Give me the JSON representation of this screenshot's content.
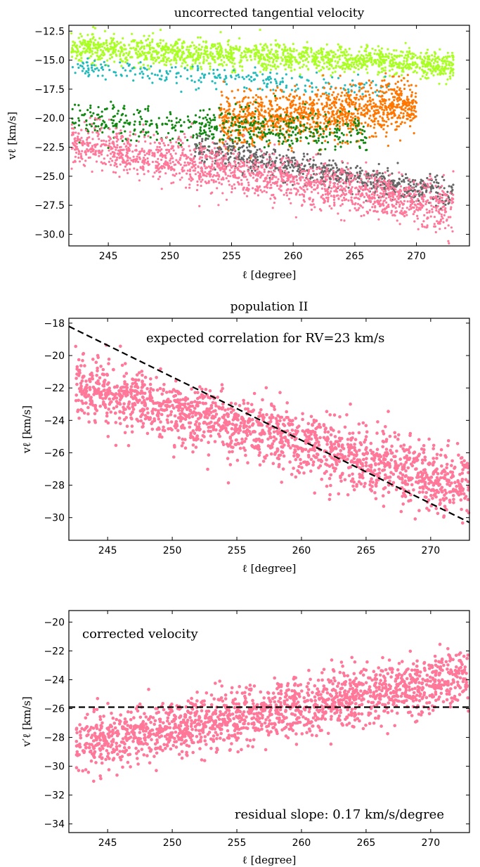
{
  "chart_data": [
    {
      "type": "scatter",
      "title": "uncorrected tangential velocity",
      "xlabel": "ℓ [degree]",
      "ylabel": "vℓ [km/s]",
      "xlim": [
        241.8,
        274.3
      ],
      "ylim": [
        -31.0,
        -12.0
      ],
      "xticks": [
        245,
        250,
        255,
        260,
        265,
        270
      ],
      "yticks": [
        -12.5,
        -15.0,
        -17.5,
        -20.0,
        -22.5,
        -25.0,
        -27.5,
        -30.0
      ],
      "ytick_labels": [
        "−12.5",
        "−15.0",
        "−17.5",
        "−20.0",
        "−22.5",
        "−25.0",
        "−27.5",
        "−30.0"
      ],
      "xtick_labels": [
        "245",
        "250",
        "255",
        "260",
        "265",
        "270"
      ],
      "grid": false,
      "series": [
        {
          "color": "#aaff22",
          "x_range": [
            242,
            273
          ],
          "y_start": -13.9,
          "y_end": -15.4,
          "spread": 0.6,
          "count": 1500
        },
        {
          "color": "#22bbbb",
          "x_range": [
            242,
            268
          ],
          "y_start": -15.7,
          "y_end": -17.4,
          "spread": 0.45,
          "count": 260
        },
        {
          "color": "#ff7700",
          "x_range": [
            254,
            270
          ],
          "y_start": -20.5,
          "y_end": -18.8,
          "spread": 1.1,
          "count": 1200
        },
        {
          "color": "#118811",
          "x_range": [
            242,
            266
          ],
          "y_start": -20.3,
          "y_end": -21.3,
          "spread": 0.8,
          "count": 520
        },
        {
          "color": "#666666",
          "x_range": [
            252,
            273
          ],
          "y_start": -22.6,
          "y_end": -26.6,
          "spread": 0.6,
          "count": 700
        },
        {
          "color": "#ff7799",
          "x_range": [
            242,
            273
          ],
          "y_start": -22.2,
          "y_end": -27.8,
          "spread": 1.0,
          "count": 1700
        }
      ]
    },
    {
      "type": "scatter",
      "title": "population II",
      "xlabel": "ℓ [degree]",
      "ylabel": "vℓ [km/s]",
      "xlim": [
        242,
        273
      ],
      "ylim": [
        -31.4,
        -17.7
      ],
      "xticks": [
        245,
        250,
        255,
        260,
        265,
        270
      ],
      "yticks": [
        -18,
        -20,
        -22,
        -24,
        -26,
        -28,
        -30
      ],
      "ytick_labels": [
        "−18",
        "−20",
        "−22",
        "−24",
        "−26",
        "−28",
        "−30"
      ],
      "xtick_labels": [
        "245",
        "250",
        "255",
        "260",
        "265",
        "270"
      ],
      "annotation": "expected correlation for RV=23 km/s",
      "reference_line": {
        "x": [
          242,
          273
        ],
        "y": [
          -18.2,
          -30.3
        ],
        "style": "dashed"
      },
      "series": [
        {
          "color": "#ff7799",
          "x_range": [
            242.5,
            273
          ],
          "y_start": -21.7,
          "y_end": -28.2,
          "spread": 1.0,
          "count": 1700
        }
      ]
    },
    {
      "type": "scatter",
      "title": "",
      "xlabel": "ℓ [degree]",
      "ylabel": "v′ℓ [km/s]",
      "xlim": [
        242,
        273
      ],
      "ylim": [
        -34.6,
        -19.2
      ],
      "xticks": [
        245,
        250,
        255,
        260,
        265,
        270
      ],
      "yticks": [
        -20,
        -22,
        -24,
        -26,
        -28,
        -30,
        -32,
        -34
      ],
      "ytick_labels": [
        "−20",
        "−22",
        "−24",
        "−26",
        "−28",
        "−30",
        "−32",
        "−34"
      ],
      "xtick_labels": [
        "245",
        "250",
        "255",
        "260",
        "265",
        "270"
      ],
      "annotation_top": "corrected velocity",
      "annotation_bottom": "residual slope: 0.17 km/s/degree",
      "reference_line": {
        "x": [
          242,
          273
        ],
        "y": [
          -25.9,
          -25.9
        ],
        "style": "dashed"
      },
      "series": [
        {
          "color": "#ff7799",
          "x_range": [
            242.5,
            273
          ],
          "y_start": -28.6,
          "y_end": -23.8,
          "spread": 1.0,
          "count": 1700
        }
      ]
    }
  ]
}
